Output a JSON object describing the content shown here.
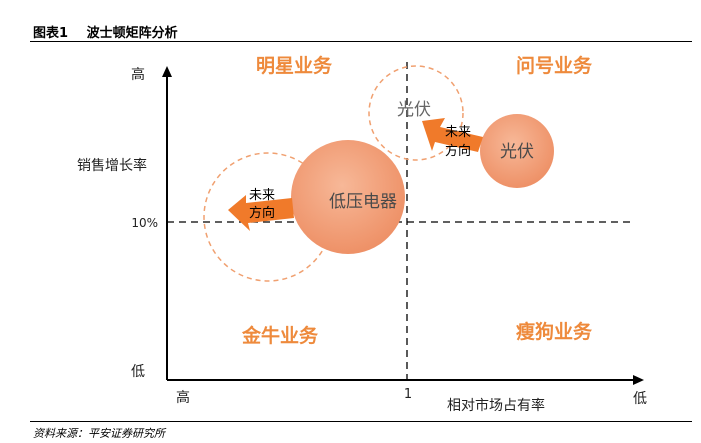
{
  "header": {
    "figure_no": "图表1",
    "title": "波士顿矩阵分析"
  },
  "quadrants": {
    "star": "明星业务",
    "question": "问号业务",
    "cash_cow": "金牛业务",
    "dog": "瘦狗业务"
  },
  "axes": {
    "y_label": "销售增长率",
    "y_high": "高",
    "y_low": "低",
    "y_mid": "10%",
    "x_label": "相对市场占有率",
    "x_high": "高",
    "x_low": "低",
    "x_mid": "1"
  },
  "bubbles": {
    "pv_current": "光伏",
    "pv_future": "光伏",
    "lv_current": "低压电器"
  },
  "arrows": {
    "pv": [
      "未来",
      "方向"
    ],
    "lv": [
      "未来",
      "方向"
    ]
  },
  "colors": {
    "quadrant_text": "#EE8A3C",
    "bubble_fill": "#F2A078",
    "arrow": "#F07A2A",
    "dashed_circle": "#F0A070"
  },
  "source": "资料来源：平安证券研究所"
}
